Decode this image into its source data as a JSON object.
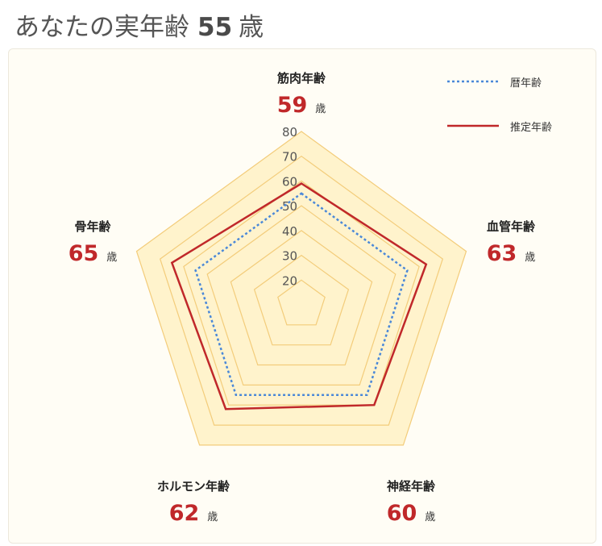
{
  "header": {
    "title": "あなたの実年齢",
    "age": "55",
    "unit": "歳"
  },
  "chart_data": {
    "type": "radar",
    "axes": [
      {
        "label": "筋肉年齢",
        "value": 59
      },
      {
        "label": "血管年齢",
        "value": 63
      },
      {
        "label": "神経年齢",
        "value": 60
      },
      {
        "label": "ホルモン年齢",
        "value": 62
      },
      {
        "label": "骨年齢",
        "value": 65
      }
    ],
    "age_unit": "歳",
    "range": [
      10,
      80
    ],
    "ticks": [
      20,
      30,
      40,
      50,
      60,
      70,
      80
    ],
    "series": [
      {
        "name": "暦年齢",
        "values": [
          55,
          55,
          55,
          55,
          55
        ],
        "color": "#4a88d8",
        "style": "dotted"
      },
      {
        "name": "推定年齢",
        "values": [
          59,
          63,
          60,
          62,
          65
        ],
        "color": "#c0282a",
        "style": "solid"
      }
    ],
    "legend_position": "top-right",
    "grid": true,
    "colors": {
      "fill": "#fff3cc",
      "grid": "#f3cc7a"
    }
  }
}
